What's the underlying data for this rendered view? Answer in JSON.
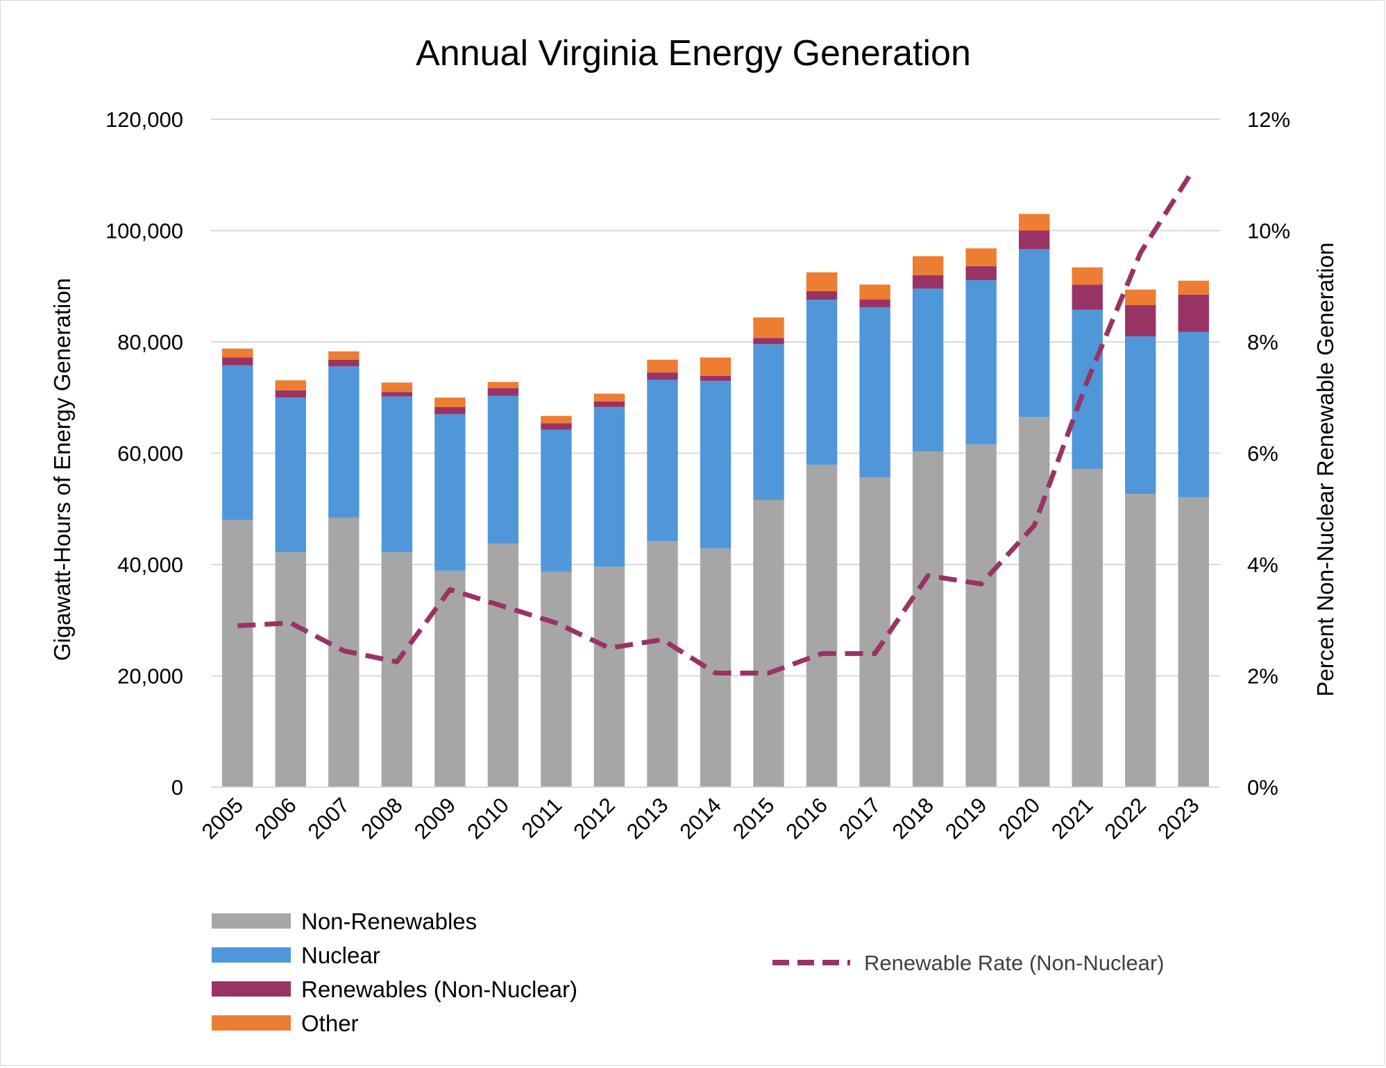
{
  "chart_data": {
    "type": "bar",
    "stacked": true,
    "title": "Annual Virginia Energy Generation",
    "xlabel": "",
    "ylabel": "Gigawatt-Hours of Energy Generation",
    "y2label": "Percent Non-Nuclear Renewable Generation",
    "ylim": [
      0,
      120000
    ],
    "y2lim": [
      0,
      12
    ],
    "yticks": [
      "0",
      "20,000",
      "40,000",
      "60,000",
      "80,000",
      "100,000",
      "120,000"
    ],
    "y2ticks": [
      "0%",
      "2%",
      "4%",
      "6%",
      "8%",
      "10%",
      "12%"
    ],
    "grid": true,
    "legend_position": "bottom",
    "categories": [
      "2005",
      "2006",
      "2007",
      "2008",
      "2009",
      "2010",
      "2011",
      "2012",
      "2013",
      "2014",
      "2015",
      "2016",
      "2017",
      "2018",
      "2019",
      "2020",
      "2021",
      "2022",
      "2023"
    ],
    "series": [
      {
        "name": "Non-Renewables",
        "color": "#a6a6a6",
        "values": [
          48000,
          42200,
          48400,
          42200,
          38900,
          43800,
          38700,
          39600,
          44200,
          42900,
          51600,
          57900,
          55700,
          60300,
          61600,
          66500,
          57200,
          52700,
          52100
        ]
      },
      {
        "name": "Nuclear",
        "color": "#4f97d9",
        "values": [
          27800,
          27800,
          27200,
          28000,
          28100,
          26500,
          25500,
          28700,
          29000,
          30100,
          28000,
          29700,
          30500,
          29300,
          29500,
          30200,
          28600,
          28300,
          29700
        ]
      },
      {
        "name": "Renewables (Non-Nuclear)",
        "color": "#993366",
        "values": [
          1400,
          1300,
          1200,
          800,
          1300,
          1400,
          1200,
          1000,
          1300,
          900,
          1100,
          1500,
          1400,
          2400,
          2500,
          3300,
          4500,
          5600,
          6700
        ]
      },
      {
        "name": "Other",
        "color": "#ed7d31",
        "values": [
          1600,
          1800,
          1500,
          1700,
          1700,
          1100,
          1300,
          1400,
          2300,
          3300,
          3700,
          3400,
          2700,
          3400,
          3200,
          3000,
          3100,
          2800,
          2500
        ]
      }
    ],
    "line_series": {
      "name": "Renewable Rate (Non-Nuclear)",
      "axis": "right",
      "color": "#993366",
      "style": "dashed",
      "values": [
        2.9,
        2.95,
        2.45,
        2.25,
        3.55,
        3.25,
        2.95,
        2.5,
        2.65,
        2.05,
        2.05,
        2.4,
        2.4,
        3.8,
        3.65,
        4.7,
        7.3,
        9.6,
        11.1
      ]
    }
  }
}
